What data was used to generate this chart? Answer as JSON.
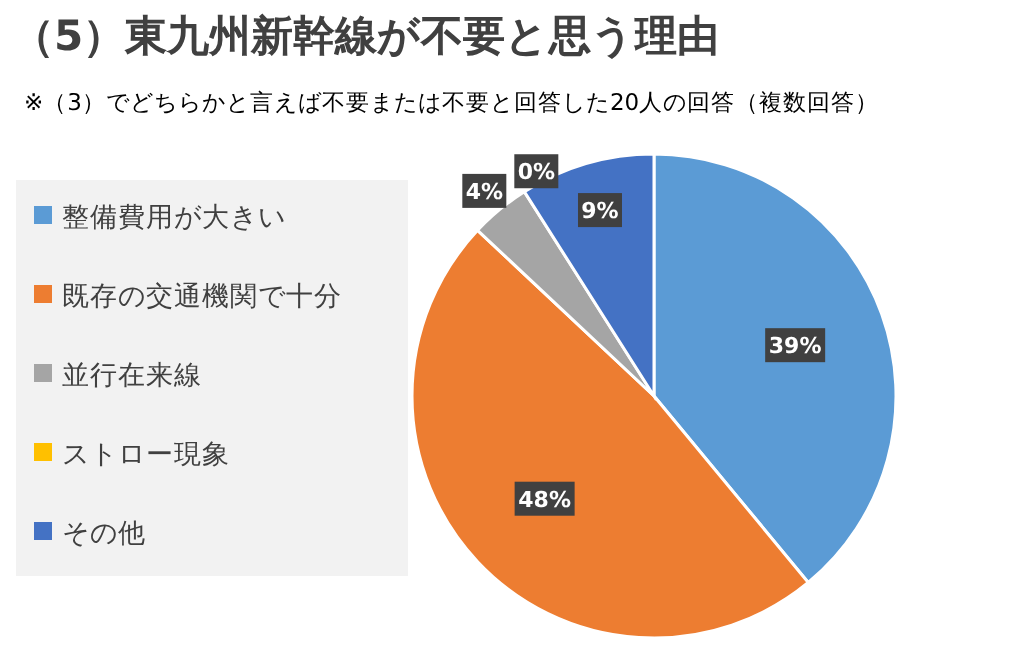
{
  "chart_data": {
    "type": "pie",
    "title": "（5）東九州新幹線が不要と思う理由",
    "subtitle": "※（3）でどちらかと言えば不要または不要と回答した20人の回答（複数回答）",
    "categories": [
      "整備費用が大きい",
      "既存の交通機関で十分",
      "並行在来線",
      "ストロー現象",
      "その他"
    ],
    "values": [
      39,
      48,
      4,
      0,
      9
    ],
    "colors": [
      "#5b9bd5",
      "#ed7d31",
      "#a5a5a5",
      "#ffc000",
      "#4472c4"
    ],
    "value_labels": [
      "39%",
      "48%",
      "4%",
      "0%",
      "9%"
    ],
    "legend": "left"
  }
}
